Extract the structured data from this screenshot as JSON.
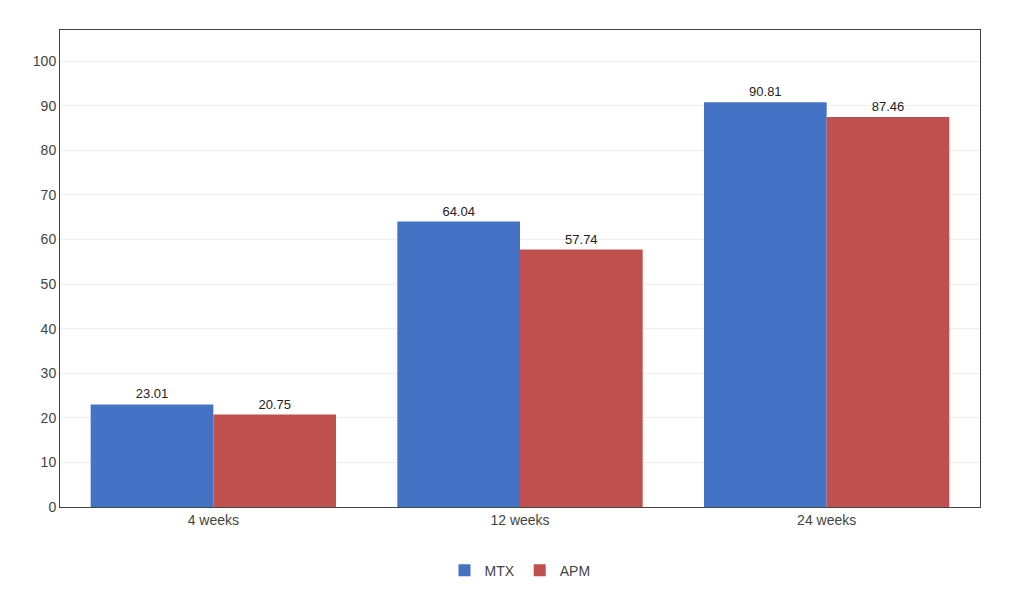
{
  "chart_data": {
    "type": "bar",
    "categories": [
      "4 weeks",
      "12 weeks",
      "24 weeks"
    ],
    "series": [
      {
        "name": "MTX",
        "color": "#4472C4",
        "values": [
          23.01,
          64.04,
          90.81
        ]
      },
      {
        "name": "APM",
        "color": "#C0504D",
        "values": [
          20.75,
          57.74,
          87.46
        ]
      }
    ],
    "ylim": [
      0,
      107
    ],
    "yticks": [
      0,
      10,
      20,
      30,
      40,
      50,
      60,
      70,
      80,
      90,
      100
    ],
    "grid": true,
    "legend": "bottom",
    "data_labels": true
  }
}
